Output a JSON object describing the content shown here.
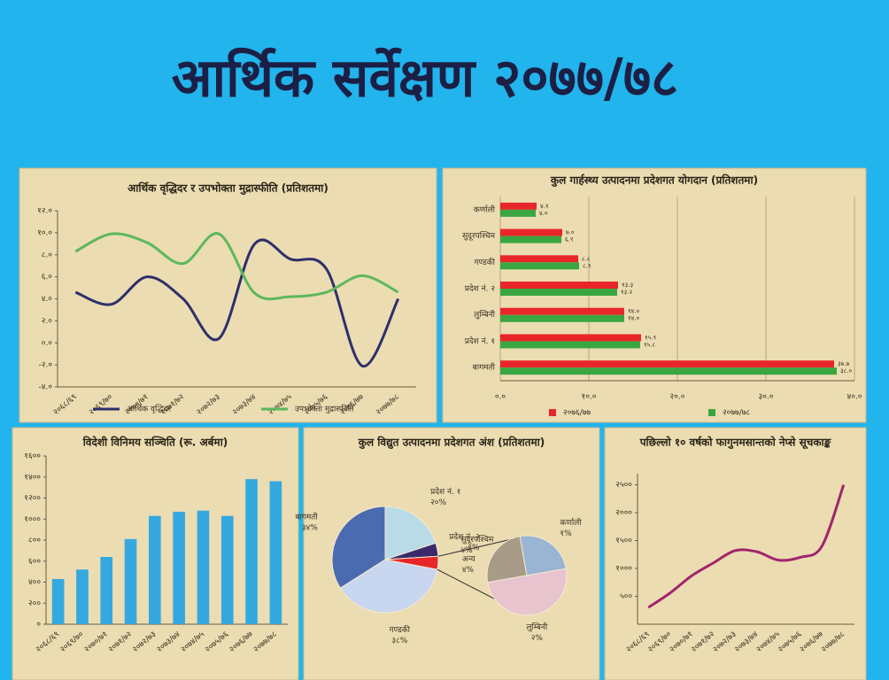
{
  "page_title": "आर्थिक सर्वेक्षण २०७७/७८",
  "chart_data": [
    {
      "type": "line",
      "title": "आर्थिक वृद्धिदर र उपभोक्ता मुद्रास्फीति (प्रतिशतमा)",
      "categories": [
        "२०६८/६९",
        "२०६९/७०",
        "२०७०/७१",
        "२०७१/७२",
        "२०७२/७३",
        "२०७३/७४",
        "२०७४/७५",
        "२०७५/७६",
        "२०७६/७७",
        "२०७७/७८"
      ],
      "series": [
        {
          "name": "आर्थिक वृद्धिदर",
          "color": "#2e2f6b",
          "values": [
            4.6,
            3.5,
            6.0,
            4.0,
            0.4,
            9.0,
            7.6,
            6.7,
            -2.1,
            4.0
          ]
        },
        {
          "name": "उपभोक्ता मुद्रास्फीति",
          "color": "#5cb85c",
          "values": [
            8.3,
            9.9,
            9.1,
            7.2,
            9.9,
            4.5,
            4.2,
            4.6,
            6.1,
            4.6
          ]
        }
      ],
      "ylim": [
        -4,
        12
      ],
      "yticks": [
        {
          "value": -4,
          "label": "-४.०"
        },
        {
          "value": -2,
          "label": "-२.०"
        },
        {
          "value": 0,
          "label": "०.०"
        },
        {
          "value": 2,
          "label": "२.०"
        },
        {
          "value": 4,
          "label": "४.०"
        },
        {
          "value": 6,
          "label": "६.०"
        },
        {
          "value": 8,
          "label": "८.०"
        },
        {
          "value": 10,
          "label": "१०.०"
        },
        {
          "value": 12,
          "label": "१२.०"
        }
      ],
      "legend": "bottom",
      "grid": false
    },
    {
      "type": "hbar",
      "title": "कुल गार्हस्थ्य उत्पादनमा प्रदेशगत योगदान (प्रतिशतमा)",
      "categories": [
        "कर्णाली",
        "सुदूरपश्चिम",
        "गण्डकी",
        "प्रदेश नं. २",
        "लुम्बिनी",
        "प्रदेश नं. १",
        "बागमती"
      ],
      "series": [
        {
          "name": "२०७६/७७",
          "color": "#e8262a",
          "values": [
            4.1,
            7.0,
            8.8,
            13.3,
            14.0,
            15.9,
            37.7
          ],
          "value_labels": [
            "४.१",
            "७.०",
            "८.८",
            "१३.३",
            "१४.०",
            "१५.९",
            "३७.७"
          ]
        },
        {
          "name": "२०७७/७८",
          "color": "#3aa641",
          "values": [
            4.0,
            6.9,
            8.9,
            13.2,
            14.0,
            15.8,
            38.0
          ],
          "value_labels": [
            "४.०",
            "६.९",
            "८.९",
            "१३.२",
            "१४.०",
            "१५.८",
            "३८.०"
          ]
        }
      ],
      "xlim": [
        0,
        40
      ],
      "xticks": [
        {
          "value": 0,
          "label": "०.०"
        },
        {
          "value": 10,
          "label": "१०.०"
        },
        {
          "value": 20,
          "label": "२०.०"
        },
        {
          "value": 30,
          "label": "३०.०"
        },
        {
          "value": 40,
          "label": "४०.०"
        }
      ],
      "legend": "bottom",
      "grid": true
    },
    {
      "type": "bar",
      "title": "विदेशी विनिमय सञ्चिति (रू. अर्बमा)",
      "categories": [
        "२०६८/६९",
        "२०६९/७०",
        "२०७०/७१",
        "२०७१/७२",
        "२०७२/७३",
        "२०७३/७४",
        "२०७४/७५",
        "२०७५/७६",
        "२०७६/७७",
        "२०७७/७८"
      ],
      "values": [
        430,
        520,
        640,
        810,
        1030,
        1070,
        1080,
        1030,
        1380,
        1360
      ],
      "color": "#35a9df",
      "ylim": [
        0,
        1600
      ],
      "yticks": [
        {
          "value": 0,
          "label": "०"
        },
        {
          "value": 200,
          "label": "२००"
        },
        {
          "value": 400,
          "label": "४००"
        },
        {
          "value": 600,
          "label": "६००"
        },
        {
          "value": 800,
          "label": "८००"
        },
        {
          "value": 1000,
          "label": "१०००"
        },
        {
          "value": 1200,
          "label": "१२००"
        },
        {
          "value": 1400,
          "label": "१४००"
        },
        {
          "value": 1600,
          "label": "१६००"
        }
      ],
      "grid": false
    },
    {
      "type": "pie",
      "title": "कुल विद्युत उत्पादनमा प्रदेशगत अंश (प्रतिशतमा)",
      "categories": [
        "प्रदेश नं. १",
        "सुदूरपश्चिम",
        "अन्य",
        "गण्डकी",
        "बागमती"
      ],
      "values": [
        20,
        4,
        4,
        38,
        34
      ],
      "value_labels": [
        "२०%",
        "४%",
        "४%",
        "३८%",
        "३४%"
      ],
      "colors": [
        "#b9dbe8",
        "#3a2a6a",
        "#e8262a",
        "#c9d6ef",
        "#4a6bb0"
      ],
      "breakout": {
        "categories": [
          "प्रदेश नं. २",
          "कर्णाली",
          "लुम्बिनी"
        ],
        "values": [
          1,
          1,
          2
        ],
        "value_labels": [
          "१%",
          "१%",
          "२%"
        ],
        "colors": [
          "#a89c88",
          "#9ab4d4",
          "#e8c4cf"
        ]
      }
    },
    {
      "type": "line",
      "title": "पछिल्लो १० वर्षको फागुनमसान्तको नेप्से सूचकाङ्क",
      "categories": [
        "२०६८/६९",
        "२०६९/७०",
        "२०७०/७१",
        "२०७१/७२",
        "२०७२/७३",
        "२०७३/७४",
        "२०७४/७५",
        "२०७५/७६",
        "२०७६/७७",
        "२०७७/७८"
      ],
      "series": [
        {
          "name": "नेप्से",
          "color": "#a0266b",
          "values": [
            300,
            560,
            870,
            1100,
            1320,
            1300,
            1150,
            1200,
            1400,
            2500
          ]
        }
      ],
      "ylim": [
        0,
        2700
      ],
      "yticks": [
        {
          "value": 500,
          "label": "५००"
        },
        {
          "value": 1000,
          "label": "१०००"
        },
        {
          "value": 1500,
          "label": "१५००"
        },
        {
          "value": 2000,
          "label": "२०००"
        },
        {
          "value": 2500,
          "label": "२५००"
        }
      ],
      "legend": "none",
      "grid": false
    }
  ]
}
